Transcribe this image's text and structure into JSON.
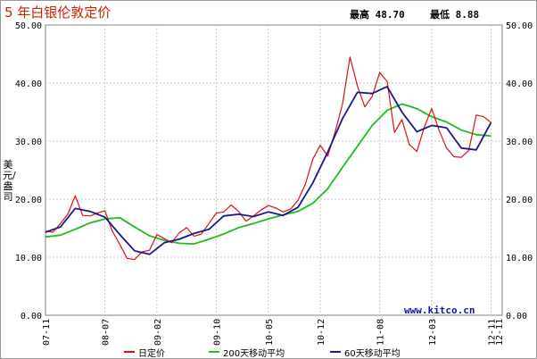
{
  "chart_data": {
    "type": "line",
    "title": "5 年白银伦敦定价",
    "max_label": "最高 48.70",
    "min_label": "最低 8.88",
    "ylabel": "美元/盎司",
    "ylim": [
      0,
      50
    ],
    "yticks": [
      "0.00",
      "10.00",
      "20.00",
      "30.00",
      "40.00",
      "50.00"
    ],
    "xticks": [
      "07-11",
      "08-07",
      "09-02",
      "09-10",
      "10-05",
      "10-12",
      "11-08",
      "12-03",
      "12-11"
    ],
    "x_end_label": "12-11",
    "watermark": "www.kitco.cn",
    "legend_position": "bottom",
    "grid": true,
    "series": [
      {
        "name": "日定价",
        "color": "#dd1111",
        "x": [
          "07-11",
          "07-12",
          "08-01",
          "08-02",
          "08-03",
          "08-04",
          "08-05",
          "08-06",
          "08-07",
          "08-08",
          "08-09",
          "08-10",
          "08-11",
          "08-12",
          "09-01",
          "09-02",
          "09-03",
          "09-04",
          "09-05",
          "09-06",
          "09-07",
          "09-08",
          "09-09",
          "09-10",
          "09-11",
          "09-12",
          "10-01",
          "10-02",
          "10-03",
          "10-04",
          "10-05",
          "10-06",
          "10-07",
          "10-08",
          "10-09",
          "10-10",
          "10-11",
          "10-12",
          "11-01",
          "11-02",
          "11-03",
          "11-04",
          "11-05",
          "11-06",
          "11-07",
          "11-08",
          "11-09",
          "11-10",
          "11-11",
          "11-12",
          "12-01",
          "12-02",
          "12-03",
          "12-04",
          "12-05",
          "12-06",
          "12-07",
          "12-08",
          "12-09",
          "12-10",
          "12-11"
        ],
        "values": [
          14.5,
          14.3,
          15.8,
          17.4,
          20.6,
          17.2,
          17.1,
          17.6,
          18.0,
          14.5,
          12.2,
          9.8,
          9.6,
          10.9,
          11.2,
          13.9,
          13.2,
          12.5,
          14.2,
          15.1,
          13.6,
          14.0,
          15.8,
          17.6,
          17.8,
          19.0,
          17.9,
          16.2,
          17.1,
          18.1,
          18.9,
          18.5,
          17.8,
          18.3,
          19.8,
          22.6,
          26.9,
          29.3,
          27.4,
          31.6,
          36.4,
          44.5,
          39.5,
          35.9,
          37.7,
          41.8,
          40.3,
          31.5,
          33.7,
          29.4,
          28.2,
          32.4,
          35.6,
          31.9,
          28.8,
          27.3,
          27.2,
          28.4,
          34.5,
          34.2,
          33.2
        ]
      },
      {
        "name": "200天移动平均",
        "color": "#22bb22",
        "x": [
          "07-11",
          "08-01",
          "08-03",
          "08-05",
          "08-07",
          "08-09",
          "08-11",
          "09-01",
          "09-03",
          "09-05",
          "09-07",
          "09-09",
          "09-11",
          "10-01",
          "10-03",
          "10-05",
          "10-07",
          "10-09",
          "10-11",
          "11-01",
          "11-03",
          "11-05",
          "11-07",
          "11-09",
          "11-11",
          "12-01",
          "12-03",
          "12-05",
          "12-07",
          "12-09",
          "12-11"
        ],
        "values": [
          13.5,
          13.8,
          14.8,
          15.9,
          16.6,
          16.8,
          15.2,
          13.7,
          12.9,
          12.4,
          12.3,
          13.1,
          14.0,
          15.1,
          15.8,
          16.6,
          17.3,
          17.9,
          19.3,
          21.8,
          25.5,
          29.1,
          32.7,
          35.3,
          36.4,
          35.6,
          34.2,
          33.3,
          31.9,
          31.1,
          30.9
        ]
      },
      {
        "name": "60天移动平均",
        "color": "#1a1a88",
        "x": [
          "07-11",
          "08-01",
          "08-03",
          "08-05",
          "08-07",
          "08-09",
          "08-11",
          "09-01",
          "09-03",
          "09-05",
          "09-07",
          "09-09",
          "09-11",
          "10-01",
          "10-03",
          "10-05",
          "10-07",
          "10-09",
          "10-11",
          "11-01",
          "11-03",
          "11-05",
          "11-07",
          "11-09",
          "11-11",
          "12-01",
          "12-03",
          "12-05",
          "12-07",
          "12-09",
          "12-11"
        ],
        "values": [
          14.3,
          15.2,
          18.4,
          17.9,
          16.9,
          13.9,
          11.1,
          10.5,
          12.5,
          13.1,
          14.1,
          14.8,
          17.1,
          17.4,
          17.0,
          17.8,
          17.2,
          18.6,
          22.8,
          28.1,
          33.9,
          38.4,
          38.2,
          39.4,
          35.0,
          31.6,
          32.7,
          32.3,
          28.8,
          28.5,
          33.2
        ]
      }
    ]
  }
}
